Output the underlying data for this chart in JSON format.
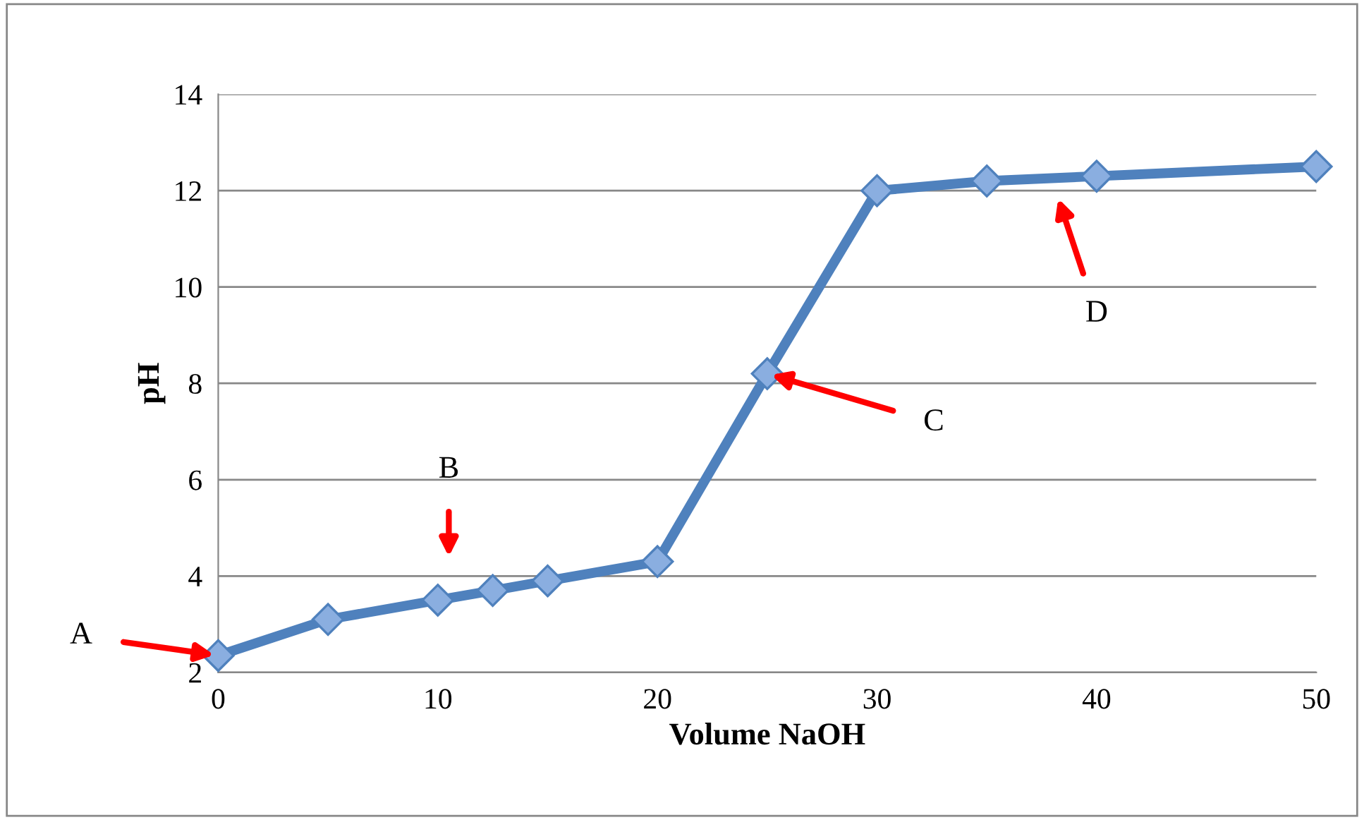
{
  "chart_data": {
    "type": "line",
    "xlabel": "Volume NaOH",
    "ylabel": "pH",
    "x": [
      0,
      5,
      10,
      12.5,
      15,
      20,
      25,
      30,
      35,
      40,
      50
    ],
    "series": [
      {
        "color": "#4f81bd",
        "values": [
          2.35,
          3.1,
          3.5,
          3.7,
          3.9,
          4.3,
          8.2,
          12.0,
          12.2,
          12.3,
          12.5
        ]
      }
    ],
    "xlim": [
      0,
      50
    ],
    "xticks": [
      0,
      10,
      20,
      30,
      40,
      50
    ],
    "ylim": [
      2,
      14
    ],
    "yticks": [
      2,
      4,
      6,
      8,
      10,
      12,
      14
    ],
    "grid": "y",
    "marker": "diamond",
    "line_style": "solid",
    "annotations": [
      {
        "text": "A",
        "x": 0,
        "y": 2.35
      },
      "B",
      {
        "text": "C",
        "x": 25,
        "y": 8.2
      },
      "D"
    ]
  }
}
